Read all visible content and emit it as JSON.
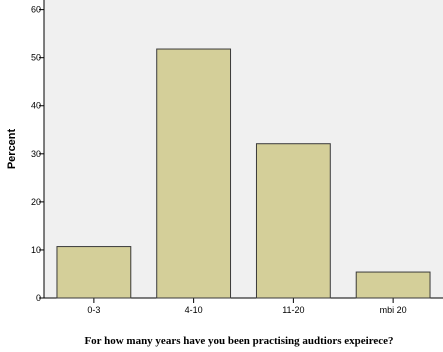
{
  "chart_data": {
    "type": "bar",
    "categories": [
      "0-3",
      "4-10",
      "11-20",
      "mbi 20"
    ],
    "values": [
      10.7,
      51.8,
      32.1,
      5.4
    ],
    "xlabel": "For how many years have you been practising audtiors expeirece?",
    "ylabel": "Percent",
    "ylim": [
      0,
      62
    ],
    "yticks": [
      0,
      10,
      20,
      30,
      40,
      50,
      60
    ],
    "grid": false,
    "legend": "none",
    "colors": {
      "plot_background": "#f0f0f0",
      "bar_fill": "#d4cf99",
      "bar_stroke": "#3a3a3a",
      "axis": "#000000"
    }
  }
}
